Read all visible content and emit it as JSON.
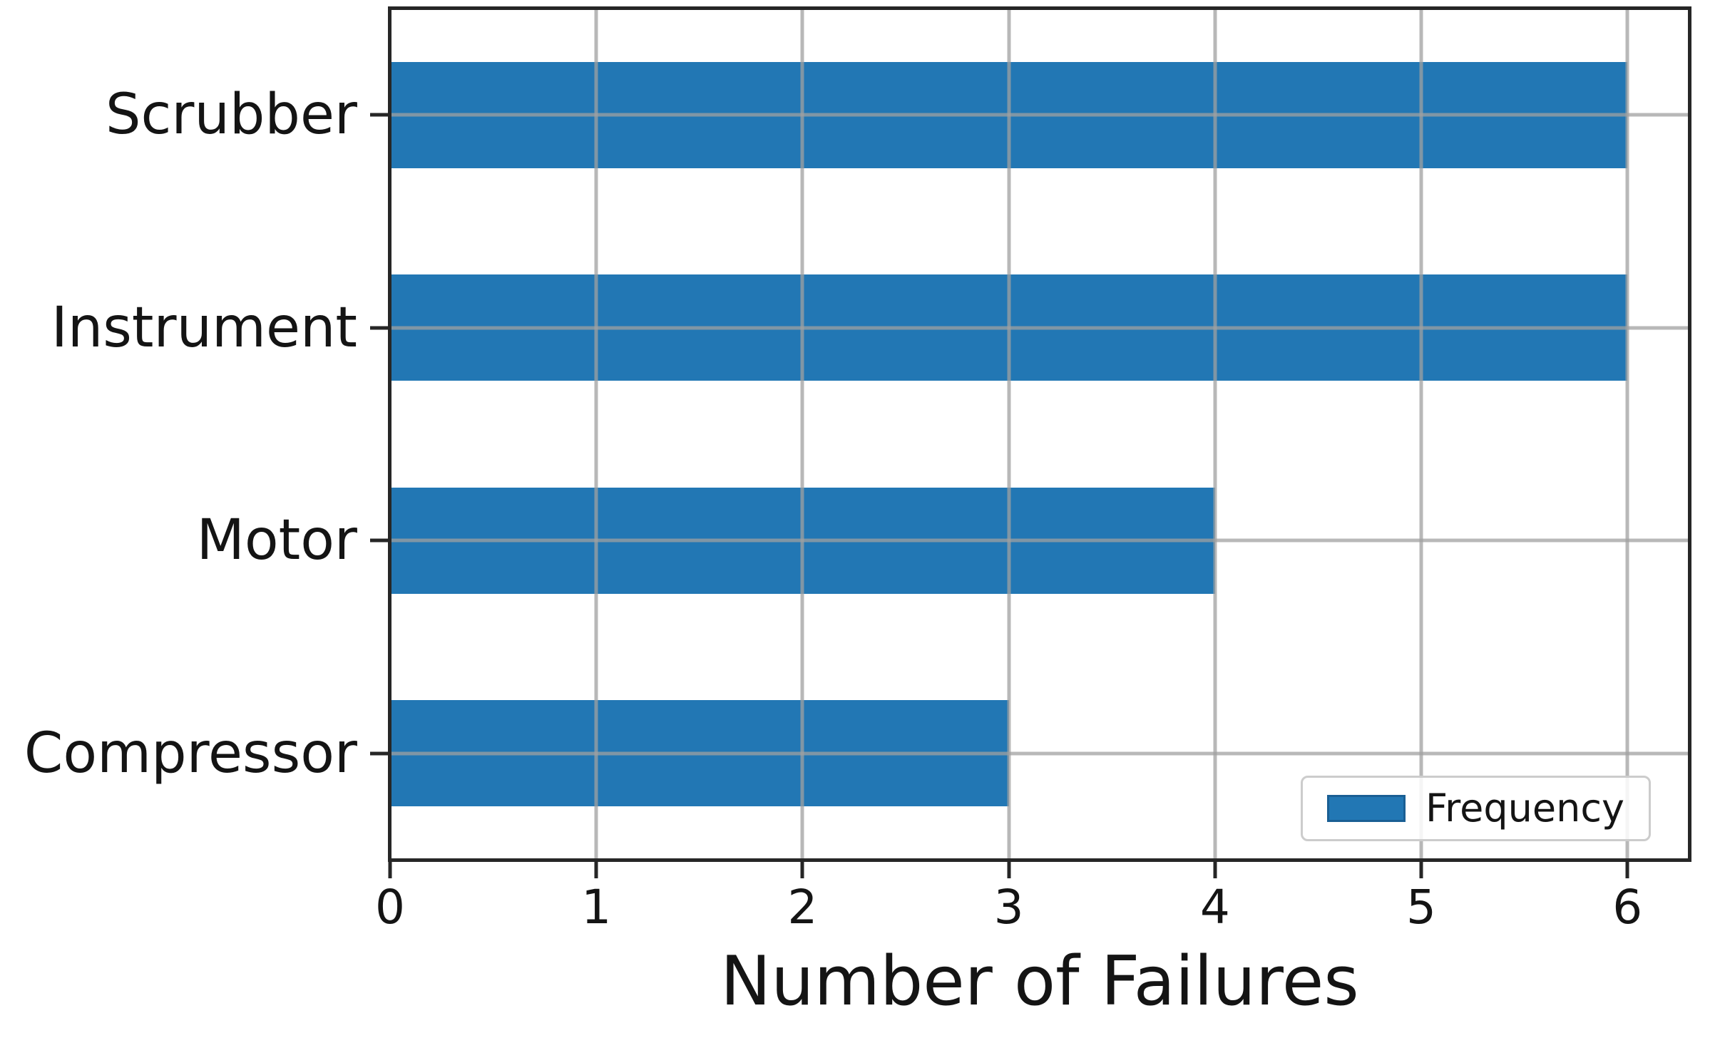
{
  "figure": {
    "background_color": "#ffffff"
  },
  "chart_data": {
    "type": "bar",
    "orientation": "horizontal",
    "title": "",
    "xlabel": "Number of Failures",
    "ylabel": "",
    "categories_order": "top-to-bottom",
    "categories": [
      "Scrubber",
      "Instrument",
      "Motor",
      "Compressor"
    ],
    "series": [
      {
        "name": "Frequency",
        "values": [
          6,
          6,
          4,
          3
        ]
      }
    ],
    "xlim": [
      0,
      6.3
    ],
    "xticks": [
      0,
      1,
      2,
      3,
      4,
      5,
      6
    ],
    "grid": true,
    "grid_above_bars": true,
    "legend_position": "lower right",
    "bar_height_fraction": 0.5,
    "colors": {
      "bar_fill": "#2277b4",
      "bar_edge": "#1a5f94",
      "grid_line": "rgba(160,160,160,0.75)",
      "spine": "#262626",
      "text": "#141414",
      "legend_border": "#cccccc",
      "legend_background": "rgba(255,255,255,0.85)"
    }
  }
}
